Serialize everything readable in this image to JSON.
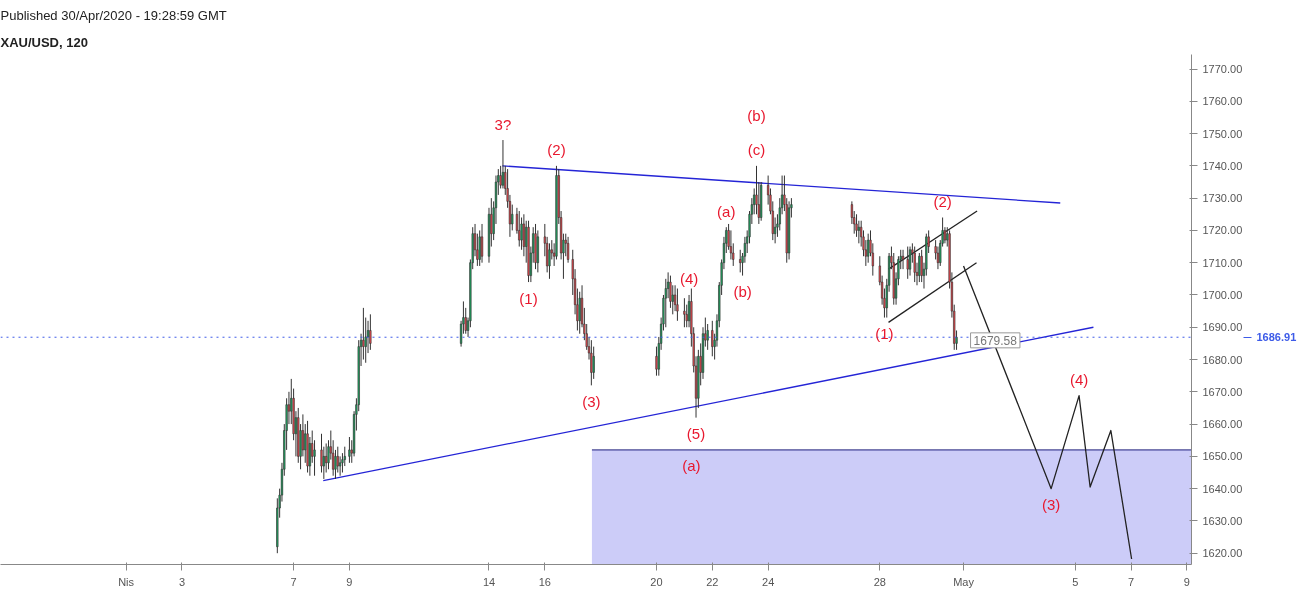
{
  "chart_data": {
    "type": "candlestick",
    "title": "XAU/USD, 120",
    "subtitle": "Published 30/Apr/2020 - 19:28:59 GMT",
    "x": [
      "2020-04-06T10:00",
      "2020-04-06T12:00",
      "2020-04-06T14:00",
      "2020-04-06T16:00",
      "2020-04-06T18:00",
      "2020-04-06T20:00",
      "2020-04-06T22:00",
      "2020-04-07T00:00",
      "2020-04-07T02:00",
      "2020-04-07T04:00",
      "2020-04-07T06:00",
      "2020-04-07T08:00",
      "2020-04-07T10:00",
      "2020-04-07T12:00",
      "2020-04-07T14:00",
      "2020-04-07T16:00",
      "2020-04-07T18:00",
      "2020-04-08T00:00",
      "2020-04-08T02:00",
      "2020-04-08T04:00",
      "2020-04-08T06:00",
      "2020-04-08T08:00",
      "2020-04-08T10:00",
      "2020-04-08T12:00",
      "2020-04-08T14:00",
      "2020-04-08T16:00",
      "2020-04-08T18:00",
      "2020-04-08T20:00",
      "2020-04-09T00:00",
      "2020-04-09T02:00",
      "2020-04-09T04:00",
      "2020-04-09T06:00",
      "2020-04-09T08:00",
      "2020-04-09T10:00",
      "2020-04-09T12:00",
      "2020-04-09T14:00",
      "2020-04-09T16:00",
      "2020-04-09T18:00",
      "2020-04-13T00:00",
      "2020-04-13T02:00",
      "2020-04-13T04:00",
      "2020-04-13T06:00",
      "2020-04-13T08:00",
      "2020-04-13T10:00",
      "2020-04-13T12:00",
      "2020-04-13T14:00",
      "2020-04-13T16:00",
      "2020-04-13T18:00",
      "2020-04-14T00:00",
      "2020-04-14T02:00",
      "2020-04-14T04:00",
      "2020-04-14T06:00",
      "2020-04-14T08:00",
      "2020-04-14T10:00",
      "2020-04-14T12:00",
      "2020-04-14T14:00",
      "2020-04-14T16:00",
      "2020-04-14T18:00",
      "2020-04-14T20:00",
      "2020-04-15T00:00",
      "2020-04-15T02:00",
      "2020-04-15T04:00",
      "2020-04-15T06:00",
      "2020-04-15T08:00",
      "2020-04-15T10:00",
      "2020-04-15T12:00",
      "2020-04-15T14:00",
      "2020-04-15T16:00",
      "2020-04-15T18:00",
      "2020-04-16T00:00",
      "2020-04-16T02:00",
      "2020-04-16T04:00",
      "2020-04-16T06:00",
      "2020-04-16T08:00",
      "2020-04-16T10:00",
      "2020-04-16T12:00",
      "2020-04-16T14:00",
      "2020-04-16T16:00",
      "2020-04-16T18:00",
      "2020-04-16T20:00",
      "2020-04-17T00:00",
      "2020-04-17T02:00",
      "2020-04-17T04:00",
      "2020-04-17T06:00",
      "2020-04-17T08:00",
      "2020-04-17T10:00",
      "2020-04-17T12:00",
      "2020-04-17T14:00",
      "2020-04-17T16:00",
      "2020-04-17T18:00",
      "2020-04-20T00:00",
      "2020-04-20T02:00",
      "2020-04-20T04:00",
      "2020-04-20T06:00",
      "2020-04-20T08:00",
      "2020-04-20T10:00",
      "2020-04-20T12:00",
      "2020-04-20T14:00",
      "2020-04-20T16:00",
      "2020-04-20T18:00",
      "2020-04-21T00:00",
      "2020-04-21T02:00",
      "2020-04-21T04:00",
      "2020-04-21T06:00",
      "2020-04-21T08:00",
      "2020-04-21T10:00",
      "2020-04-21T12:00",
      "2020-04-21T14:00",
      "2020-04-21T16:00",
      "2020-04-21T18:00",
      "2020-04-21T20:00",
      "2020-04-22T00:00",
      "2020-04-22T02:00",
      "2020-04-22T04:00",
      "2020-04-22T06:00",
      "2020-04-22T08:00",
      "2020-04-22T10:00",
      "2020-04-22T12:00",
      "2020-04-22T14:00",
      "2020-04-22T16:00",
      "2020-04-22T18:00",
      "2020-04-23T00:00",
      "2020-04-23T02:00",
      "2020-04-23T04:00",
      "2020-04-23T06:00",
      "2020-04-23T08:00",
      "2020-04-23T10:00",
      "2020-04-23T12:00",
      "2020-04-23T14:00",
      "2020-04-23T16:00",
      "2020-04-23T18:00",
      "2020-04-24T00:00",
      "2020-04-24T02:00",
      "2020-04-24T04:00",
      "2020-04-24T06:00",
      "2020-04-24T08:00",
      "2020-04-24T10:00",
      "2020-04-24T12:00",
      "2020-04-24T14:00",
      "2020-04-24T16:00",
      "2020-04-24T18:00",
      "2020-04-24T20:00",
      "2020-04-27T00:00",
      "2020-04-27T02:00",
      "2020-04-27T04:00",
      "2020-04-27T06:00",
      "2020-04-27T08:00",
      "2020-04-27T10:00",
      "2020-04-27T12:00",
      "2020-04-27T14:00",
      "2020-04-27T16:00",
      "2020-04-27T18:00",
      "2020-04-28T00:00",
      "2020-04-28T02:00",
      "2020-04-28T04:00",
      "2020-04-28T06:00",
      "2020-04-28T08:00",
      "2020-04-28T10:00",
      "2020-04-28T12:00",
      "2020-04-28T14:00",
      "2020-04-28T16:00",
      "2020-04-28T18:00",
      "2020-04-28T20:00",
      "2020-04-29T00:00",
      "2020-04-29T02:00",
      "2020-04-29T04:00",
      "2020-04-29T06:00",
      "2020-04-29T08:00",
      "2020-04-29T10:00",
      "2020-04-29T12:00",
      "2020-04-29T14:00",
      "2020-04-29T16:00",
      "2020-04-29T18:00",
      "2020-04-30T00:00",
      "2020-04-30T02:00",
      "2020-04-30T04:00",
      "2020-04-30T06:00",
      "2020-04-30T08:00",
      "2020-04-30T10:00",
      "2020-04-30T12:00",
      "2020-04-30T14:00",
      "2020-04-30T16:00",
      "2020-04-30T18:00"
    ],
    "ohlc": [
      [
        1622,
        1637,
        1620,
        1634
      ],
      [
        1634,
        1640,
        1631,
        1638
      ],
      [
        1638,
        1648,
        1636,
        1646
      ],
      [
        1646,
        1660,
        1644,
        1658
      ],
      [
        1658,
        1668,
        1652,
        1666
      ],
      [
        1666,
        1670,
        1660,
        1664
      ],
      [
        1664,
        1674,
        1660,
        1668
      ],
      [
        1668,
        1671,
        1655,
        1657
      ],
      [
        1657,
        1664,
        1650,
        1662
      ],
      [
        1662,
        1665,
        1648,
        1650
      ],
      [
        1650,
        1660,
        1646,
        1658
      ],
      [
        1658,
        1663,
        1650,
        1652
      ],
      [
        1652,
        1660,
        1648,
        1657
      ],
      [
        1657,
        1661,
        1645,
        1647
      ],
      [
        1647,
        1656,
        1644,
        1654
      ],
      [
        1654,
        1658,
        1648,
        1650
      ],
      [
        1650,
        1655,
        1644,
        1652
      ],
      [
        1652,
        1657,
        1645,
        1647
      ],
      [
        1647,
        1653,
        1643,
        1650
      ],
      [
        1650,
        1654,
        1645,
        1648
      ],
      [
        1648,
        1655,
        1646,
        1653
      ],
      [
        1653,
        1658,
        1649,
        1651
      ],
      [
        1651,
        1655,
        1644,
        1646
      ],
      [
        1646,
        1652,
        1643,
        1650
      ],
      [
        1650,
        1653,
        1645,
        1647
      ],
      [
        1647,
        1650,
        1644,
        1648
      ],
      [
        1648,
        1651,
        1645,
        1649
      ],
      [
        1649,
        1653,
        1647,
        1650
      ],
      [
        1650,
        1656,
        1648,
        1652
      ],
      [
        1652,
        1655,
        1648,
        1651
      ],
      [
        1651,
        1664,
        1650,
        1663
      ],
      [
        1663,
        1668,
        1658,
        1666
      ],
      [
        1666,
        1686,
        1664,
        1684
      ],
      [
        1684,
        1688,
        1678,
        1686
      ],
      [
        1686,
        1696,
        1680,
        1684
      ],
      [
        1684,
        1693,
        1679,
        1687
      ],
      [
        1687,
        1692,
        1682,
        1689
      ],
      [
        1689,
        1694,
        1683,
        1685
      ],
      [
        1685,
        1692,
        1684,
        1691
      ],
      [
        1691,
        1698,
        1688,
        1693
      ],
      [
        1693,
        1696,
        1688,
        1689
      ],
      [
        1689,
        1693,
        1687,
        1692
      ],
      [
        1692,
        1711,
        1690,
        1710
      ],
      [
        1710,
        1721,
        1708,
        1719
      ],
      [
        1719,
        1722,
        1712,
        1714
      ],
      [
        1714,
        1719,
        1709,
        1711
      ],
      [
        1711,
        1720,
        1709,
        1718
      ],
      [
        1718,
        1722,
        1710,
        1712
      ],
      [
        1712,
        1727,
        1710,
        1725
      ],
      [
        1725,
        1730,
        1715,
        1719
      ],
      [
        1719,
        1729,
        1717,
        1727
      ],
      [
        1727,
        1737,
        1722,
        1735
      ],
      [
        1735,
        1739,
        1731,
        1737
      ],
      [
        1737,
        1740,
        1733,
        1734
      ],
      [
        1734,
        1748,
        1733,
        1738
      ],
      [
        1738,
        1740,
        1731,
        1733
      ],
      [
        1733,
        1739,
        1727,
        1729
      ],
      [
        1729,
        1731,
        1718,
        1722
      ],
      [
        1722,
        1728,
        1720,
        1725
      ],
      [
        1725,
        1727,
        1719,
        1720
      ],
      [
        1720,
        1726,
        1715,
        1717
      ],
      [
        1717,
        1724,
        1714,
        1722
      ],
      [
        1722,
        1725,
        1712,
        1715
      ],
      [
        1715,
        1723,
        1710,
        1721
      ],
      [
        1721,
        1723,
        1704,
        1706
      ],
      [
        1706,
        1715,
        1704,
        1713
      ],
      [
        1713,
        1721,
        1710,
        1719
      ],
      [
        1719,
        1722,
        1708,
        1710
      ],
      [
        1710,
        1720,
        1707,
        1718
      ],
      [
        1718,
        1722,
        1712,
        1716
      ],
      [
        1716,
        1718,
        1707,
        1709
      ],
      [
        1709,
        1716,
        1705,
        1714
      ],
      [
        1714,
        1717,
        1711,
        1713
      ],
      [
        1713,
        1716,
        1709,
        1712
      ],
      [
        1712,
        1740,
        1711,
        1737
      ],
      [
        1737,
        1739,
        1722,
        1724
      ],
      [
        1724,
        1726,
        1711,
        1713
      ],
      [
        1713,
        1719,
        1705,
        1717
      ],
      [
        1717,
        1719,
        1712,
        1716
      ],
      [
        1716,
        1718,
        1710,
        1711
      ],
      [
        1711,
        1714,
        1700,
        1705
      ],
      [
        1705,
        1708,
        1694,
        1697
      ],
      [
        1697,
        1702,
        1689,
        1692
      ],
      [
        1692,
        1701,
        1688,
        1699
      ],
      [
        1699,
        1703,
        1690,
        1691
      ],
      [
        1691,
        1696,
        1686,
        1688
      ],
      [
        1688,
        1691,
        1683,
        1684
      ],
      [
        1684,
        1687,
        1680,
        1682
      ],
      [
        1682,
        1686,
        1672,
        1676
      ],
      [
        1676,
        1684,
        1674,
        1681
      ],
      [
        1681,
        1684,
        1675,
        1677
      ],
      [
        1677,
        1687,
        1675,
        1685
      ],
      [
        1685,
        1693,
        1683,
        1691
      ],
      [
        1691,
        1700,
        1689,
        1699
      ],
      [
        1699,
        1705,
        1690,
        1702
      ],
      [
        1702,
        1707,
        1699,
        1704
      ],
      [
        1704,
        1706,
        1696,
        1698
      ],
      [
        1698,
        1703,
        1694,
        1700
      ],
      [
        1700,
        1703,
        1695,
        1697
      ],
      [
        1697,
        1702,
        1692,
        1695
      ],
      [
        1695,
        1699,
        1690,
        1694
      ],
      [
        1694,
        1697,
        1690,
        1692
      ],
      [
        1692,
        1700,
        1690,
        1698
      ],
      [
        1698,
        1702,
        1684,
        1688
      ],
      [
        1688,
        1690,
        1676,
        1678
      ],
      [
        1678,
        1681,
        1662,
        1668
      ],
      [
        1668,
        1683,
        1665,
        1681
      ],
      [
        1681,
        1685,
        1672,
        1676
      ],
      [
        1676,
        1690,
        1674,
        1688
      ],
      [
        1688,
        1693,
        1684,
        1686
      ],
      [
        1686,
        1691,
        1683,
        1689
      ],
      [
        1689,
        1692,
        1681,
        1684
      ],
      [
        1684,
        1688,
        1680,
        1686
      ],
      [
        1686,
        1694,
        1684,
        1692
      ],
      [
        1692,
        1704,
        1690,
        1703
      ],
      [
        1703,
        1711,
        1700,
        1710
      ],
      [
        1710,
        1718,
        1708,
        1716
      ],
      [
        1716,
        1721,
        1713,
        1720
      ],
      [
        1720,
        1722,
        1714,
        1715
      ],
      [
        1715,
        1720,
        1711,
        1713
      ],
      [
        1713,
        1716,
        1709,
        1711
      ],
      [
        1711,
        1714,
        1707,
        1710
      ],
      [
        1710,
        1713,
        1706,
        1712
      ],
      [
        1712,
        1718,
        1710,
        1716
      ],
      [
        1716,
        1720,
        1713,
        1718
      ],
      [
        1718,
        1726,
        1716,
        1725
      ],
      [
        1725,
        1730,
        1722,
        1728
      ],
      [
        1728,
        1733,
        1725,
        1731
      ],
      [
        1731,
        1740,
        1725,
        1728
      ],
      [
        1728,
        1735,
        1722,
        1724
      ],
      [
        1724,
        1735,
        1723,
        1734
      ],
      [
        1734,
        1737,
        1728,
        1731
      ],
      [
        1731,
        1733,
        1725,
        1726
      ],
      [
        1726,
        1729,
        1717,
        1719
      ],
      [
        1719,
        1724,
        1716,
        1721
      ],
      [
        1721,
        1725,
        1718,
        1722
      ],
      [
        1722,
        1730,
        1720,
        1727
      ],
      [
        1727,
        1737,
        1725,
        1731
      ],
      [
        1731,
        1737,
        1726,
        1728
      ],
      [
        1728,
        1730,
        1710,
        1713
      ],
      [
        1713,
        1729,
        1711,
        1727
      ],
      [
        1727,
        1730,
        1724,
        1728
      ],
      [
        1728,
        1729,
        1722,
        1724
      ],
      [
        1724,
        1726,
        1719,
        1722
      ],
      [
        1722,
        1725,
        1718,
        1720
      ],
      [
        1720,
        1723,
        1716,
        1721
      ],
      [
        1721,
        1723,
        1715,
        1718
      ],
      [
        1718,
        1720,
        1712,
        1714
      ],
      [
        1714,
        1717,
        1709,
        1712
      ],
      [
        1712,
        1719,
        1710,
        1717
      ],
      [
        1717,
        1720,
        1712,
        1713
      ],
      [
        1713,
        1716,
        1706,
        1709
      ],
      [
        1709,
        1712,
        1703,
        1704
      ],
      [
        1704,
        1706,
        1697,
        1699
      ],
      [
        1699,
        1702,
        1693,
        1696
      ],
      [
        1696,
        1705,
        1693,
        1703
      ],
      [
        1703,
        1713,
        1701,
        1712
      ],
      [
        1712,
        1715,
        1708,
        1710
      ],
      [
        1710,
        1713,
        1697,
        1699
      ],
      [
        1699,
        1707,
        1697,
        1705
      ],
      [
        1705,
        1712,
        1703,
        1711
      ],
      [
        1711,
        1714,
        1708,
        1712
      ],
      [
        1712,
        1714,
        1708,
        1711
      ],
      [
        1711,
        1715,
        1705,
        1708
      ],
      [
        1708,
        1715,
        1706,
        1714
      ],
      [
        1714,
        1716,
        1710,
        1713
      ],
      [
        1713,
        1715,
        1704,
        1707
      ],
      [
        1707,
        1710,
        1703,
        1706
      ],
      [
        1706,
        1713,
        1704,
        1712
      ],
      [
        1712,
        1714,
        1704,
        1706
      ],
      [
        1706,
        1710,
        1702,
        1708
      ],
      [
        1708,
        1719,
        1706,
        1718
      ],
      [
        1718,
        1720,
        1713,
        1715
      ],
      [
        1715,
        1717,
        1711,
        1713
      ],
      [
        1713,
        1715,
        1708,
        1710
      ],
      [
        1710,
        1717,
        1709,
        1716
      ],
      [
        1716,
        1724,
        1715,
        1720
      ],
      [
        1720,
        1721,
        1716,
        1717
      ],
      [
        1717,
        1721,
        1715,
        1719
      ],
      [
        1719,
        1720,
        1702,
        1704
      ],
      [
        1704,
        1707,
        1693,
        1695
      ],
      [
        1695,
        1697,
        1683,
        1685
      ],
      [
        1685,
        1689,
        1683,
        1686.91
      ]
    ],
    "series": [
      {
        "type": "line",
        "color": "#2424d6",
        "x": [
          "2020-04-14T11:30",
          "2020-05-04T11:10"
        ],
        "values": [
          1740,
          1728.5
        ]
      },
      {
        "type": "line",
        "color": "#2424d6",
        "x": [
          "2020-04-08T01:30",
          "2020-05-05T15:40"
        ],
        "values": [
          1642.5,
          1690
        ]
      },
      {
        "type": "line",
        "color": "#222222",
        "x": [
          "2020-04-28T07:30",
          "2020-05-01T11:40"
        ],
        "values": [
          1708,
          1726
        ]
      },
      {
        "type": "line",
        "color": "#222222",
        "x": [
          "2020-04-28T07:30",
          "2020-05-01T11:10"
        ],
        "values": [
          1691.5,
          1710
        ]
      },
      {
        "type": "line",
        "color": "#222222",
        "x": [
          "2020-05-01T00:00",
          "2020-05-04T03:20",
          "2020-05-05T03:20",
          "2020-05-05T12:50",
          "2020-05-06T06:40",
          "2020-05-07T00:30"
        ],
        "values": [
          1709,
          1640,
          1668.8,
          1640.5,
          1658,
          1618.2
        ]
      },
      {
        "type": "area",
        "color": "#ccccf8",
        "x": [
          "2020-04-17T16:30",
          "2020-05-09T04:00"
        ],
        "values": [
          1652,
          1652
        ]
      }
    ],
    "ref_lines": [
      {
        "axis": "y",
        "value": 1686.91,
        "label": "1686.91",
        "color": "#3d5be8",
        "line_style": "dotted"
      }
    ],
    "annotations": [
      {
        "text": "3?",
        "x": "2020-04-14T12:00",
        "y": 1748
      },
      {
        "text": "(2)",
        "x": "2020-04-16T10:00",
        "y": 1740
      },
      {
        "text": "(c)",
        "x": "2020-04-23T14:00",
        "y": 1740
      },
      {
        "text": "(b)",
        "x": "2020-04-23T14:00",
        "y": 1740
      },
      {
        "text": "(a)",
        "x": "2020-04-22T12:00",
        "y": 1721
      },
      {
        "text": "(4)",
        "x": "2020-04-21T04:00",
        "y": 1700
      },
      {
        "text": "(b)",
        "x": "2020-04-23T02:00",
        "y": 1706
      },
      {
        "text": "(1)",
        "x": "2020-04-15T10:00",
        "y": 1704
      },
      {
        "text": "(3)",
        "x": "2020-04-17T16:00",
        "y": 1672
      },
      {
        "text": "(5)",
        "x": "2020-04-21T10:00",
        "y": 1662
      },
      {
        "text": "(a)",
        "x": "2020-04-21T06:00",
        "y": 1652
      },
      {
        "text": "(2)",
        "x": "2020-04-30T06:00",
        "y": 1724
      },
      {
        "text": "(1)",
        "x": "2020-04-28T04:00",
        "y": 1693
      },
      {
        "text": "(4)",
        "x": "2020-05-05T03:20",
        "y": 1668.8
      },
      {
        "text": "(3)",
        "x": "2020-05-04T03:20",
        "y": 1640
      },
      "1679.58"
    ],
    "xlim": [
      "2020-03-27T12:00",
      "2020-05-09T04:00"
    ],
    "ylim": [
      1616.5,
      1774.5
    ],
    "xticks": [
      {
        "value": "2020-04-01",
        "label": "Nis"
      },
      {
        "value": "2020-04-03",
        "label": "3"
      },
      {
        "value": "2020-04-07",
        "label": "7"
      },
      {
        "value": "2020-04-09",
        "label": "9"
      },
      {
        "value": "2020-04-14",
        "label": "14"
      },
      {
        "value": "2020-04-16",
        "label": "16"
      },
      {
        "value": "2020-04-20",
        "label": "20"
      },
      {
        "value": "2020-04-22",
        "label": "22"
      },
      {
        "value": "2020-04-24",
        "label": "24"
      },
      {
        "value": "2020-04-28",
        "label": "28"
      },
      {
        "value": "2020-05-01",
        "label": "May"
      },
      {
        "value": "2020-05-05",
        "label": "5"
      },
      {
        "value": "2020-05-07",
        "label": "7"
      },
      {
        "value": "2020-05-09",
        "label": "9"
      }
    ],
    "yticks": [
      {
        "value": 1620,
        "label": "1620.00"
      },
      {
        "value": 1630,
        "label": "1630.00"
      },
      {
        "value": 1640,
        "label": "1640.00"
      },
      {
        "value": 1650,
        "label": "1650.00"
      },
      {
        "value": 1660,
        "label": "1660.00"
      },
      {
        "value": 1670,
        "label": "1670.00"
      },
      {
        "value": 1680,
        "label": "1680.00"
      },
      {
        "value": 1690,
        "label": "1690.00"
      },
      {
        "value": 1700,
        "label": "1700.00"
      },
      {
        "value": 1710,
        "label": "1710.00"
      },
      {
        "value": 1720,
        "label": "1720.00"
      },
      {
        "value": 1730,
        "label": "1730.00"
      },
      {
        "value": 1740,
        "label": "1740.00"
      },
      {
        "value": 1750,
        "label": "1750.00"
      },
      {
        "value": 1760,
        "label": "1760.00"
      },
      {
        "value": 1770,
        "label": "1770.00"
      }
    ]
  }
}
